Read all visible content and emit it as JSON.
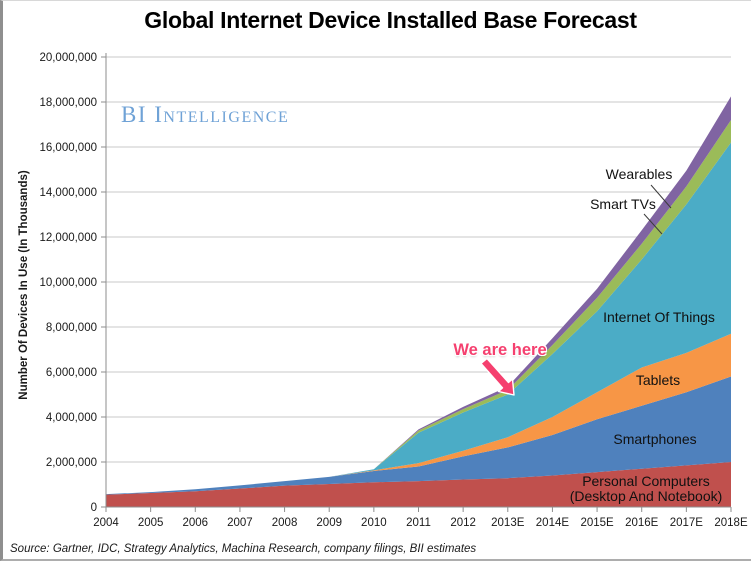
{
  "page": {
    "title": "Global Internet Device Installed Base Forecast",
    "watermark": "BI Intelligence",
    "source": "Source: Gartner, IDC, Strategy Analytics, Machina Research, company filings, BII estimates"
  },
  "annotation": {
    "we_are_here": "We are here",
    "arrow_color": "#f5406f"
  },
  "chart_data": {
    "type": "area",
    "stacked": true,
    "title": "Global Internet Device Installed Base Forecast",
    "xlabel": "",
    "ylabel": "Number Of Devices In Use (In Thousands)",
    "ylim": [
      0,
      20000000
    ],
    "ytick_step": 2000000,
    "y_tick_labels": [
      "0",
      "2,000,000",
      "4,000,000",
      "6,000,000",
      "8,000,000",
      "10,000,000",
      "12,000,000",
      "14,000,000",
      "16,000,000",
      "18,000,000",
      "20,000,000"
    ],
    "grid": "horizontal",
    "legend_position": "inline-labels",
    "categories": [
      "2004",
      "2005",
      "2006",
      "2007",
      "2008",
      "2009",
      "2010",
      "2011",
      "2012",
      "2013E",
      "2014E",
      "2015E",
      "2016E",
      "2017E",
      "2018E"
    ],
    "series": [
      {
        "name": "Personal Computers (Desktop And Notebook)",
        "label": "Personal Computers",
        "label2": "(Desktop And Notebook)",
        "color": "#c0504d",
        "values": [
          550000,
          620000,
          700000,
          820000,
          950000,
          1020000,
          1100000,
          1150000,
          1220000,
          1280000,
          1400000,
          1550000,
          1700000,
          1850000,
          2000000
        ]
      },
      {
        "name": "Smartphones",
        "label": "Smartphones",
        "color": "#4f81bd",
        "values": [
          20000,
          40000,
          90000,
          140000,
          200000,
          320000,
          500000,
          650000,
          1030000,
          1370000,
          1800000,
          2350000,
          2800000,
          3250000,
          3800000
        ]
      },
      {
        "name": "Tablets",
        "label": "Tablets",
        "color": "#f79646",
        "values": [
          0,
          0,
          0,
          0,
          0,
          0,
          30000,
          150000,
          250000,
          450000,
          800000,
          1200000,
          1700000,
          1750000,
          1900000
        ]
      },
      {
        "name": "Internet Of Things",
        "label": "Internet Of Things",
        "color": "#4bacc6",
        "values": [
          0,
          0,
          0,
          0,
          0,
          0,
          50000,
          1350000,
          1700000,
          1900000,
          2800000,
          3600000,
          4800000,
          6600000,
          8500000
        ]
      },
      {
        "name": "Smart TVs",
        "label": "Smart TVs",
        "color": "#9bbb59",
        "values": [
          0,
          0,
          0,
          0,
          0,
          0,
          0,
          100000,
          150000,
          200000,
          400000,
          600000,
          700000,
          800000,
          1000000
        ]
      },
      {
        "name": "Wearables",
        "label": "Wearables",
        "color": "#8064a2",
        "values": [
          0,
          0,
          0,
          0,
          0,
          0,
          0,
          50000,
          100000,
          150000,
          300000,
          400000,
          600000,
          700000,
          1050000
        ]
      }
    ]
  }
}
